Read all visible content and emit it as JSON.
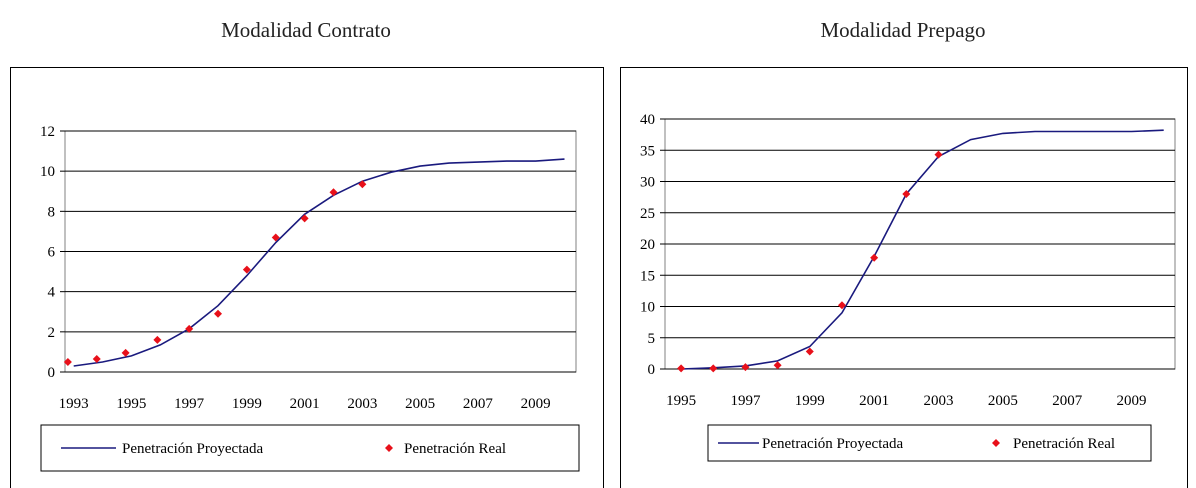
{
  "charts": [
    {
      "title": "Modalidad Contrato"
    },
    {
      "title": "Modalidad Prepago"
    }
  ],
  "colors": {
    "line": "#1a1a7e",
    "marker": "#e8101a",
    "grid": "#000000",
    "frame": "#000000"
  },
  "chart_data": [
    {
      "type": "line",
      "title": "Modalidad Contrato",
      "xlabel": "",
      "ylabel": "",
      "x_ticks": [
        "1993",
        "1995",
        "1997",
        "1999",
        "2001",
        "2003",
        "2005",
        "2007",
        "2009"
      ],
      "xlim": [
        1992.7,
        2010.4
      ],
      "ylim": [
        0,
        12
      ],
      "y_ticks": [
        0,
        2,
        4,
        6,
        8,
        10,
        12
      ],
      "grid": true,
      "legend": "bottom",
      "series": [
        {
          "name": "Penetración Proyectada",
          "style": "line",
          "x": [
            1993,
            1994,
            1995,
            1996,
            1997,
            1998,
            1999,
            2000,
            2001,
            2002,
            2003,
            2004,
            2005,
            2006,
            2007,
            2008,
            2009,
            2010
          ],
          "y": [
            0.3,
            0.5,
            0.8,
            1.35,
            2.15,
            3.3,
            4.8,
            6.45,
            7.85,
            8.8,
            9.5,
            9.95,
            10.25,
            10.4,
            10.45,
            10.5,
            10.5,
            10.6
          ]
        },
        {
          "name": "Penetración Real",
          "style": "marker",
          "x": [
            1992.8,
            1993.8,
            1994.8,
            1995.9,
            1997,
            1998,
            1999,
            2000,
            2001,
            2002,
            2003
          ],
          "y": [
            0.5,
            0.65,
            0.95,
            1.6,
            2.15,
            2.9,
            5.1,
            6.7,
            7.65,
            8.95,
            9.35
          ]
        }
      ]
    },
    {
      "type": "line",
      "title": "Modalidad Prepago",
      "xlabel": "",
      "ylabel": "",
      "x_ticks": [
        "1995",
        "1997",
        "1999",
        "2001",
        "2003",
        "2005",
        "2007",
        "2009"
      ],
      "xlim": [
        1994.5,
        2010.35
      ],
      "ylim": [
        0,
        40
      ],
      "y_ticks": [
        0,
        5,
        10,
        15,
        20,
        25,
        30,
        35,
        40
      ],
      "grid": true,
      "legend": "bottom",
      "series": [
        {
          "name": "Penetración Proyectada",
          "style": "line",
          "x": [
            1995,
            1996,
            1997,
            1998,
            1999,
            2000,
            2001,
            2002,
            2003,
            2004,
            2005,
            2006,
            2007,
            2008,
            2009,
            2010
          ],
          "y": [
            0,
            0.2,
            0.5,
            1.3,
            3.6,
            9.0,
            18.0,
            28.0,
            34.0,
            36.7,
            37.7,
            38.0,
            38.0,
            38.0,
            38.0,
            38.2
          ]
        },
        {
          "name": "Penetración Real",
          "style": "marker",
          "x": [
            1995,
            1996,
            1997,
            1998,
            1999,
            2000,
            2001,
            2002,
            2003
          ],
          "y": [
            0.1,
            0.1,
            0.3,
            0.6,
            2.8,
            10.2,
            17.8,
            28.0,
            34.3
          ]
        }
      ]
    }
  ]
}
